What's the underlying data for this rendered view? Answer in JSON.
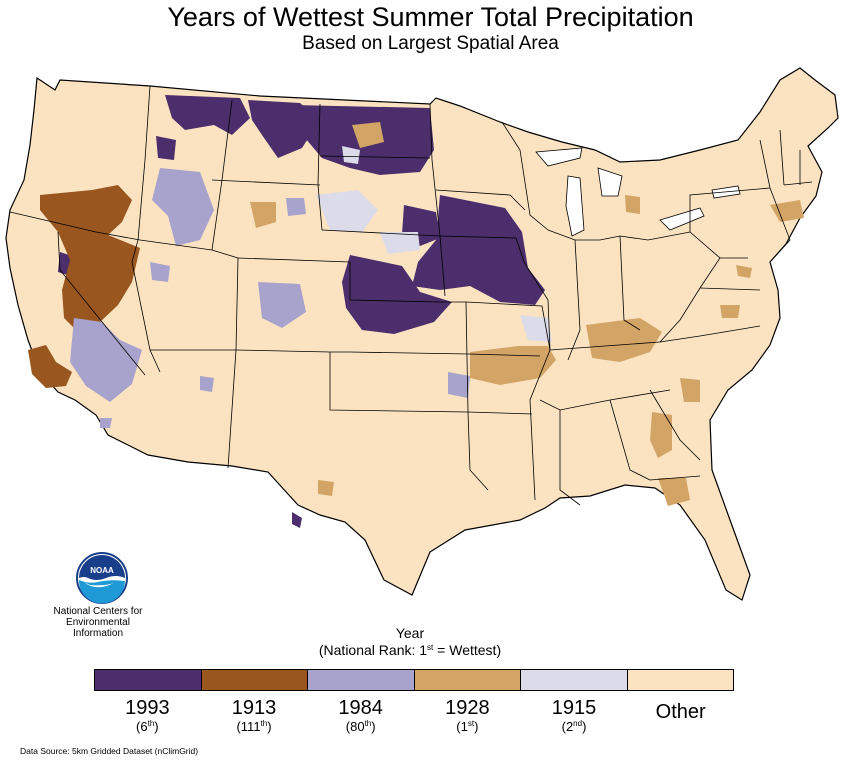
{
  "title": "Years of Wettest Summer Total Precipitation",
  "subtitle": "Based on Largest Spatial Area",
  "logo_text": "NOAA",
  "org": {
    "line1": "National Centers for",
    "line2": "Environmental",
    "line3": "Information"
  },
  "legend": {
    "title_line1": "Year",
    "title_line2": "(National Rank: 1st = Wettest)",
    "items": [
      {
        "year": "1993",
        "rank_num": "(6",
        "rank_sup": "th",
        "rank_close": ")",
        "color": "#4b2e6b"
      },
      {
        "year": "1913",
        "rank_num": "(111",
        "rank_sup": "th",
        "rank_close": ")",
        "color": "#99561f"
      },
      {
        "year": "1984",
        "rank_num": "(80",
        "rank_sup": "th",
        "rank_close": ")",
        "color": "#a8a3cc"
      },
      {
        "year": "1928",
        "rank_num": "(1",
        "rank_sup": "st",
        "rank_close": ")",
        "color": "#d2a466"
      },
      {
        "year": "1915",
        "rank_num": "(2",
        "rank_sup": "nd",
        "rank_close": ")",
        "color": "#dcdbea"
      },
      {
        "year": "Other",
        "color": "#fbe3c2"
      }
    ]
  },
  "data_source": "Data Source: 5km Gridded Dataset (nClimGrid)",
  "colors": {
    "c1993": "#4b2e6b",
    "c1913": "#99561f",
    "c1984": "#a8a3cc",
    "c1928": "#d2a466",
    "c1915": "#dcdbea",
    "other": "#fbe3c2",
    "border": "#000000"
  }
}
